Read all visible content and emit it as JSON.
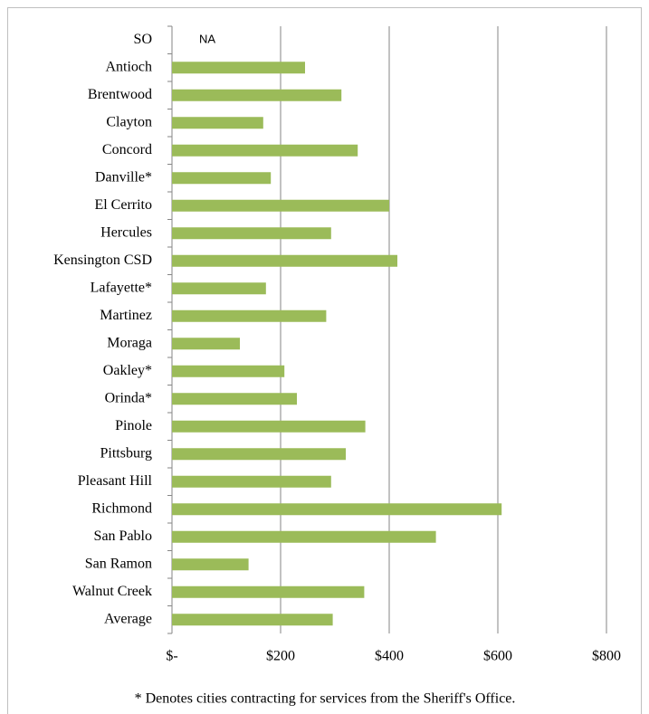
{
  "chart_data": {
    "type": "bar",
    "orientation": "horizontal",
    "categories": [
      "SO",
      "Antioch",
      "Brentwood",
      "Clayton",
      "Concord",
      "Danville*",
      "El Cerrito",
      "Hercules",
      "Kensington CSD",
      "Lafayette*",
      "Martinez",
      "Moraga",
      "Oakley*",
      "Orinda*",
      "Pinole",
      "Pittsburg",
      "Pleasant Hill",
      "Richmond",
      "San Pablo",
      "San Ramon",
      "Walnut Creek",
      "Average"
    ],
    "values": [
      null,
      245,
      312,
      168,
      342,
      182,
      400,
      293,
      415,
      173,
      284,
      125,
      207,
      230,
      356,
      320,
      293,
      607,
      486,
      141,
      354,
      296
    ],
    "annotations": [
      {
        "category": "SO",
        "text": "NA"
      }
    ],
    "color": "#9bbb59",
    "xlim": [
      0,
      800
    ],
    "xticks": [
      {
        "value": 0,
        "label": "$-"
      },
      {
        "value": 200,
        "label": "$200"
      },
      {
        "value": 400,
        "label": "$400"
      },
      {
        "value": 600,
        "label": "$600"
      },
      {
        "value": 800,
        "label": "$800"
      }
    ],
    "grid": true,
    "footnote": "* Denotes cities contracting for services from the Sheriff's Office."
  }
}
